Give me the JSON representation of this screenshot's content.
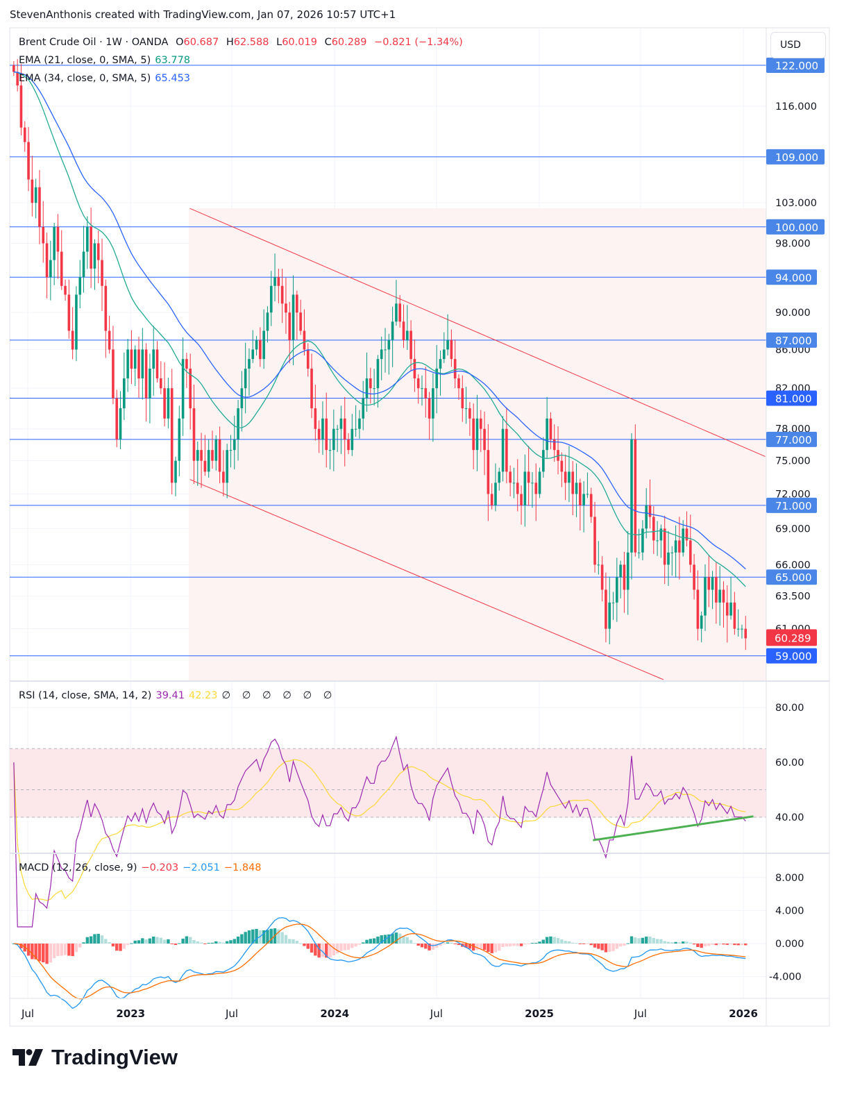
{
  "attribution": "StevenAnthonis created with TradingView.com, Jan 07, 2026 10:57 UTC+1",
  "legend": {
    "symbol": "Brent Crude Oil · 1W · OANDA",
    "o_label": "O",
    "o": "60.687",
    "h_label": "H",
    "h": "62.588",
    "l_label": "L",
    "l": "60.019",
    "c_label": "C",
    "c": "60.289",
    "change": "−0.821 (−1.34%)",
    "ema21_label": "EMA (21, close, 0, SMA, 5)",
    "ema21_value": "63.778",
    "ema34_label": "EMA (34, close, 0, SMA, 5)",
    "ema34_value": "65.453",
    "rsi_label": "RSI (14, close, SMA, 14, 2)",
    "rsi_value": "39.41",
    "rsi_ma_value": "42.23",
    "rsi_extra": "∅ ∅ ∅ ∅ ∅ ∅",
    "macd_label": "MACD (12, 26, close, 9)",
    "macd_hist": "−0.203",
    "macd_value": "−2.051",
    "macd_signal": "−1.848"
  },
  "currency": "USD",
  "brand": "TradingView",
  "colors": {
    "up": "#089981",
    "down": "#f23645",
    "ema21": "#22ab94",
    "ema34": "#2962ff",
    "rsi": "#9c27b0",
    "rsi_ma": "#fdd835",
    "macd": "#2196f3",
    "signal": "#ff6d00",
    "hline": "#2962ff",
    "channel": "#f23645",
    "trendline": "#4caf50",
    "label_bg": "#4a86e8"
  },
  "chart_data": {
    "type": "candlestick",
    "interval": "1W",
    "date_range": [
      "2022-06-06",
      "2026-01-05"
    ],
    "scale": "log",
    "closes": [
      121,
      119,
      113,
      111,
      106,
      103,
      105,
      100,
      98,
      94,
      96,
      100,
      97,
      93,
      92,
      88,
      86,
      92,
      94,
      97,
      100,
      95,
      98,
      96,
      93,
      88,
      86,
      81,
      77,
      80,
      83,
      86,
      84,
      86,
      83,
      86,
      81,
      84,
      86,
      83,
      82,
      79,
      82,
      73,
      75,
      79,
      85,
      84,
      80,
      75,
      76,
      75,
      74,
      76,
      75,
      77,
      74,
      73,
      76,
      76,
      77,
      80,
      82,
      84,
      85,
      86,
      87,
      85,
      88,
      90,
      93,
      94,
      93,
      91,
      90,
      87,
      92,
      90,
      88,
      86,
      84,
      80,
      78,
      77,
      79,
      76,
      76,
      78,
      78,
      79,
      77,
      76,
      78,
      78,
      79,
      81,
      83,
      82,
      82,
      85,
      86,
      86,
      87,
      89,
      91,
      89,
      87,
      88,
      85,
      83,
      82,
      82,
      81,
      79,
      82,
      84,
      85,
      86,
      87,
      85,
      83,
      82,
      80,
      80,
      79,
      76,
      79,
      78,
      76,
      72,
      71,
      73,
      74,
      78,
      74,
      73,
      73,
      72,
      71,
      74,
      73,
      73,
      72,
      74,
      76,
      79,
      77,
      76,
      75,
      74,
      73,
      74,
      72,
      73,
      71,
      72,
      72,
      70,
      66,
      66,
      64,
      61,
      63,
      63,
      65,
      66,
      64,
      67,
      77,
      67,
      67,
      69,
      71,
      70,
      68,
      68,
      69,
      66,
      67,
      67,
      68,
      67,
      69,
      68,
      66,
      64,
      61,
      62,
      65,
      64,
      65,
      63,
      64,
      63,
      62,
      63,
      61,
      61,
      61,
      60.289
    ],
    "price_ticks": [
      "116.000",
      "103.000",
      "98.000",
      "90.000",
      "86.000",
      "82.000",
      "78.000",
      "75.000",
      "72.000",
      "69.000",
      "66.000",
      "63.500",
      "61.000"
    ],
    "price_tick_values": [
      116,
      103,
      98,
      90,
      86,
      82,
      78,
      75,
      72,
      69,
      66,
      63.5,
      61
    ],
    "horizontal_levels": [
      122,
      109,
      100,
      94,
      87,
      81,
      77,
      71,
      65,
      59
    ],
    "horizontal_level_labels": [
      "122.000",
      "109.000",
      "100.000",
      "94.000",
      "87.000",
      "81.000",
      "77.000",
      "71.000",
      "65.000",
      "59.000"
    ],
    "last_price_label": "60.289",
    "last_price": 60.289,
    "channel": {
      "upper": [
        [
          "2023-04-17",
          102.3
        ],
        [
          "2026-02-09",
          75.4
        ]
      ],
      "lower": [
        [
          "2023-04-17",
          73.3
        ],
        [
          "2025-08-11",
          57.3
        ]
      ]
    },
    "time_ticks": [
      {
        "label": "Jul",
        "date": "2022-07-01"
      },
      {
        "label": "2023",
        "date": "2023-01-01"
      },
      {
        "label": "Jul",
        "date": "2023-07-01"
      },
      {
        "label": "2024",
        "date": "2024-01-01"
      },
      {
        "label": "Jul",
        "date": "2024-07-01"
      },
      {
        "label": "2025",
        "date": "2025-01-01"
      },
      {
        "label": "Jul",
        "date": "2025-07-01"
      },
      {
        "label": "2026",
        "date": "2026-01-01"
      }
    ],
    "ema_periods": [
      21,
      34
    ],
    "rsi": {
      "period": 14,
      "ma_period": 14,
      "levels": [
        65,
        50,
        40
      ],
      "ticks": [
        "80.00",
        "60.00",
        "40.00"
      ],
      "tick_values": [
        80,
        60,
        40
      ],
      "trendline": [
        [
          "2025-04-07",
          31.6
        ],
        [
          "2026-01-19",
          40.3
        ]
      ]
    },
    "macd": {
      "fast": 12,
      "slow": 26,
      "signal": 9,
      "ticks": [
        "8.000",
        "4.000",
        "0.000",
        "-4.000"
      ],
      "tick_values": [
        8,
        4,
        0,
        -4
      ]
    }
  }
}
